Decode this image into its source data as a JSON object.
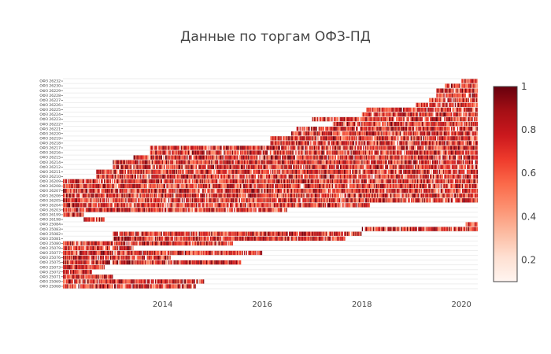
{
  "chart_data": {
    "type": "heatmap",
    "title": "Данные по торгам ОФЗ-ПД",
    "xlabel": "",
    "ylabel": "",
    "x_range": [
      "2012-01-01",
      "2020-04-30"
    ],
    "x_ticks": [
      "2014",
      "2016",
      "2018",
      "2020"
    ],
    "color_scale": {
      "name": "Reds",
      "min": 0.1,
      "max": 1.0,
      "low_color": "#fff5f0",
      "high_color": "#67000d"
    },
    "colorbar_ticks": [
      "0.2",
      "0.4",
      "0.6",
      "0.8",
      "1"
    ],
    "grid": true,
    "legend": "colorbar-right",
    "rows": [
      {
        "label": "ОФЗ 25068",
        "start": "2012-01-01",
        "end": "2014-09-01"
      },
      {
        "label": "ОФЗ 25069",
        "start": "2012-01-01",
        "end": "2014-11-01"
      },
      {
        "label": "ОФЗ 25071",
        "start": "2012-01-01",
        "end": "2013-01-01"
      },
      {
        "label": "ОФЗ 25072",
        "start": "2012-01-01",
        "end": "2012-08-01"
      },
      {
        "label": "ОФЗ 25073",
        "start": "2012-01-01",
        "end": "2012-11-01"
      },
      {
        "label": "ОФЗ 25075",
        "start": "2012-01-01",
        "end": "2015-08-01"
      },
      {
        "label": "ОФЗ 25076",
        "start": "2012-01-01",
        "end": "2014-03-01"
      },
      {
        "label": "ОФЗ 25077",
        "start": "2012-01-01",
        "end": "2016-01-01"
      },
      {
        "label": "ОФЗ 25079",
        "start": "2012-01-01",
        "end": "2013-06-01"
      },
      {
        "label": "ОФЗ 25080",
        "start": "2012-01-01",
        "end": "2015-06-01"
      },
      {
        "label": "ОФЗ 25081",
        "start": "2013-01-01",
        "end": "2017-09-01"
      },
      {
        "label": "ОФЗ 25082",
        "start": "2013-01-01",
        "end": "2018-01-01"
      },
      {
        "label": "ОФЗ 25083",
        "start": "2018-01-01",
        "end": "2020-04-30"
      },
      {
        "label": "ОФЗ 25084",
        "start": "2020-02-01",
        "end": "2020-04-30"
      },
      {
        "label": "ОФЗ 26198",
        "start": "2012-06-01",
        "end": "2012-11-01"
      },
      {
        "label": "ОФЗ 26199",
        "start": "2012-01-01",
        "end": "2012-06-01"
      },
      {
        "label": "ОФЗ 26203",
        "start": "2012-01-01",
        "end": "2016-07-01"
      },
      {
        "label": "ОФЗ 26204",
        "start": "2012-01-01",
        "end": "2018-03-01"
      },
      {
        "label": "ОФЗ 26205",
        "start": "2012-01-01",
        "end": "2020-04-30"
      },
      {
        "label": "ОФЗ 26206",
        "start": "2012-01-01",
        "end": "2020-04-30"
      },
      {
        "label": "ОФЗ 26207",
        "start": "2012-01-01",
        "end": "2020-04-30"
      },
      {
        "label": "ОФЗ 26208",
        "start": "2012-01-01",
        "end": "2020-04-30"
      },
      {
        "label": "ОФЗ 26209",
        "start": "2012-01-01",
        "end": "2020-04-30"
      },
      {
        "label": "ОФЗ 26210",
        "start": "2012-09-01",
        "end": "2020-04-30"
      },
      {
        "label": "ОФЗ 26211",
        "start": "2012-09-01",
        "end": "2020-04-30"
      },
      {
        "label": "ОФЗ 26212",
        "start": "2013-01-01",
        "end": "2020-04-30"
      },
      {
        "label": "ОФЗ 26214",
        "start": "2013-01-01",
        "end": "2020-04-30"
      },
      {
        "label": "ОФЗ 26215",
        "start": "2013-06-01",
        "end": "2020-04-30"
      },
      {
        "label": "ОФЗ 26216",
        "start": "2013-10-01",
        "end": "2020-04-30"
      },
      {
        "label": "ОФЗ 26217",
        "start": "2013-10-01",
        "end": "2020-04-30"
      },
      {
        "label": "ОФЗ 26218",
        "start": "2016-03-01",
        "end": "2020-04-30"
      },
      {
        "label": "ОФЗ 26219",
        "start": "2016-03-01",
        "end": "2020-04-30"
      },
      {
        "label": "ОФЗ 26220",
        "start": "2016-08-01",
        "end": "2020-04-30"
      },
      {
        "label": "ОФЗ 26221",
        "start": "2016-09-01",
        "end": "2020-04-30"
      },
      {
        "label": "ОФЗ 26222",
        "start": "2017-06-01",
        "end": "2020-04-30"
      },
      {
        "label": "ОФЗ 26223",
        "start": "2017-01-01",
        "end": "2020-04-30"
      },
      {
        "label": "ОФЗ 26224",
        "start": "2018-01-01",
        "end": "2020-04-30"
      },
      {
        "label": "ОФЗ 26225",
        "start": "2018-02-01",
        "end": "2020-04-30"
      },
      {
        "label": "ОФЗ 26226",
        "start": "2019-02-01",
        "end": "2020-04-30"
      },
      {
        "label": "ОФЗ 26227",
        "start": "2019-05-01",
        "end": "2020-04-30"
      },
      {
        "label": "ОФЗ 26228",
        "start": "2019-07-01",
        "end": "2020-04-30"
      },
      {
        "label": "ОФЗ 26229",
        "start": "2019-07-01",
        "end": "2020-04-30"
      },
      {
        "label": "ОФЗ 26230",
        "start": "2019-09-01",
        "end": "2020-04-30"
      },
      {
        "label": "ОФЗ 26232",
        "start": "2020-01-01",
        "end": "2020-04-30"
      }
    ]
  }
}
